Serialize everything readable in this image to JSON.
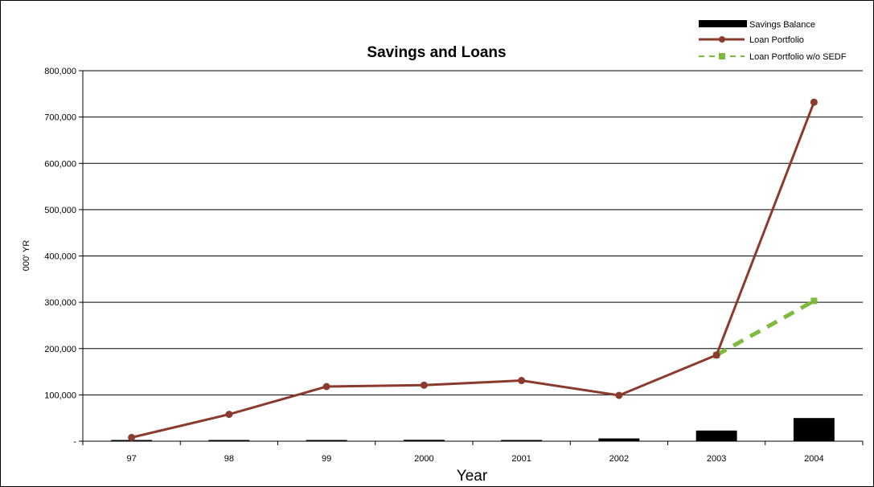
{
  "chart_data": {
    "type": "bar",
    "title": "Savings and Loans",
    "xlabel": "Year",
    "ylabel": "000' YR",
    "categories": [
      "97",
      "98",
      "99",
      "2000",
      "2001",
      "2002",
      "2003",
      "2004"
    ],
    "ylim": [
      0,
      800000
    ],
    "yticks": [
      {
        "value": 0,
        "label": "-"
      },
      {
        "value": 100000,
        "label": "100,000"
      },
      {
        "value": 200000,
        "label": "200,000"
      },
      {
        "value": 300000,
        "label": "300,000"
      },
      {
        "value": 400000,
        "label": "400,000"
      },
      {
        "value": 500000,
        "label": "500,000"
      },
      {
        "value": 600000,
        "label": "600,000"
      },
      {
        "value": 700000,
        "label": "700,000"
      },
      {
        "value": 800000,
        "label": "800,000"
      }
    ],
    "grid": true,
    "legend_position": "top-right",
    "series": [
      {
        "name": "Savings Balance",
        "kind": "bar",
        "color": "#000000",
        "values": [
          1000,
          2000,
          2000,
          3000,
          1000,
          6000,
          23000,
          50000
        ]
      },
      {
        "name": "Loan Portfolio",
        "kind": "line",
        "color": "#8b3a2e",
        "marker": "circle",
        "values": [
          8000,
          58000,
          118000,
          121000,
          131000,
          99000,
          186000,
          732000
        ]
      },
      {
        "name": "Loan Portfolio w/o SEDF",
        "kind": "dashed-line",
        "color": "#7dbb3e",
        "marker": "square",
        "values": [
          null,
          null,
          null,
          null,
          null,
          null,
          186000,
          303000
        ]
      }
    ]
  }
}
